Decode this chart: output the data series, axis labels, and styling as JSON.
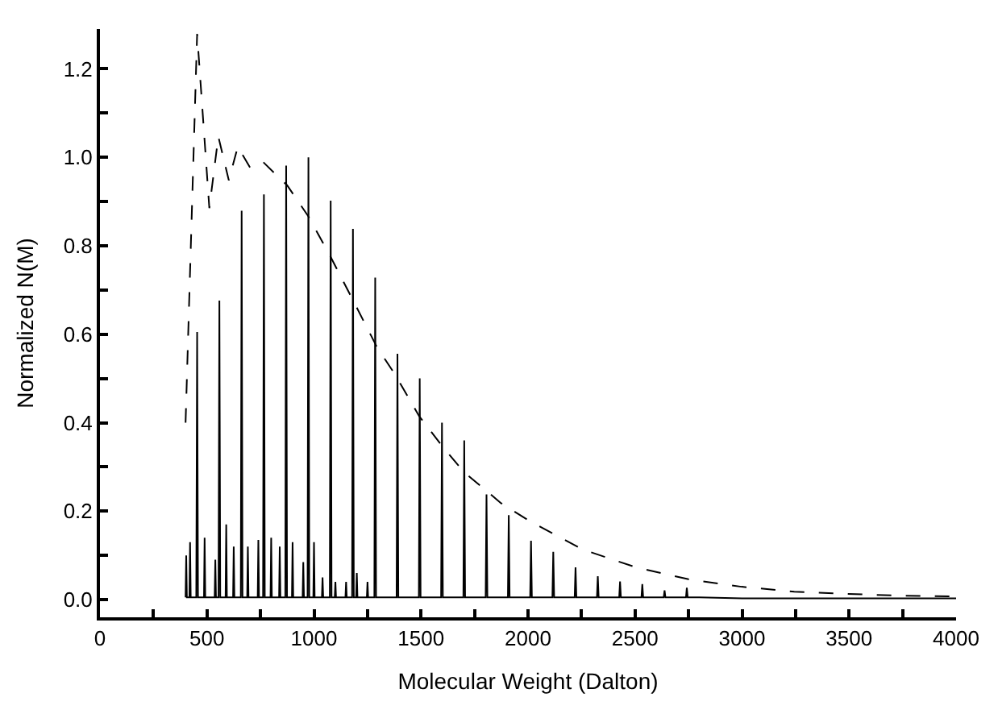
{
  "chart_data": {
    "type": "line",
    "xlabel": "Molecular Weight (Dalton)",
    "ylabel": "Normalized N(M)",
    "xlim": [
      0,
      4000
    ],
    "ylim": [
      -0.04,
      1.29
    ],
    "xticks": [
      0,
      {
        "value": 250,
        "label": null
      },
      500,
      {
        "value": 750,
        "label": null
      },
      1000,
      {
        "value": 1250,
        "label": null
      },
      1500,
      {
        "value": 1750,
        "label": null
      },
      2000,
      {
        "value": 2250,
        "label": null
      },
      2500,
      {
        "value": 2750,
        "label": null
      },
      3000,
      {
        "value": 3250,
        "label": null
      },
      3500,
      {
        "value": 3750,
        "label": null
      },
      4000
    ],
    "yticks": [
      {
        "value": 0,
        "label": "0.0"
      },
      {
        "value": 0.1,
        "label": null
      },
      0.2,
      {
        "value": 0.3,
        "label": null
      },
      0.4,
      {
        "value": 0.5,
        "label": null
      },
      0.6,
      {
        "value": 0.7,
        "label": null
      },
      0.8,
      {
        "value": 0.9,
        "label": null
      },
      {
        "value": 1,
        "label": "1.0"
      },
      {
        "value": 1.1,
        "label": null
      },
      1.2
    ],
    "marker": "none",
    "series": [
      {
        "color": "#000000",
        "line_style": "solid",
        "x": [
          400,
          403,
          406,
          418,
          421,
          424,
          450,
          454,
          458,
          486,
          489,
          492,
          536,
          539,
          542,
          554,
          558,
          562,
          587,
          590,
          593,
          622,
          625,
          628,
          658,
          662,
          666,
          688,
          691,
          694,
          737,
          740,
          743,
          762,
          766,
          770,
          797,
          800,
          803,
          837,
          840,
          843,
          866,
          870,
          874,
          897,
          900,
          903,
          947,
          950,
          953,
          970,
          974,
          978,
          997,
          1000,
          1003,
          1037,
          1040,
          1043,
          1074,
          1078,
          1082,
          1097,
          1100,
          1103,
          1147,
          1150,
          1153,
          1178,
          1182,
          1186,
          1197,
          1200,
          1203,
          1247,
          1250,
          1253,
          1282,
          1286,
          1290,
          1386,
          1390,
          1394,
          1490,
          1494,
          1498,
          1594,
          1598,
          1602,
          1698,
          1702,
          1706,
          1802,
          1806,
          1810,
          1906,
          1910,
          1914,
          2010,
          2014,
          2018,
          2114,
          2118,
          2122,
          2218,
          2222,
          2226,
          2322,
          2326,
          2330,
          2426,
          2430,
          2434,
          2530,
          2534,
          2538,
          2634,
          2638,
          2642,
          2738,
          2742,
          2746,
          2800,
          3000,
          3500,
          4000
        ],
        "values": [
          0.005,
          0.1,
          0.005,
          0.005,
          0.13,
          0.005,
          0.005,
          0.605,
          0.005,
          0.005,
          0.14,
          0.005,
          0.005,
          0.09,
          0.005,
          0.005,
          0.676,
          0.005,
          0.005,
          0.17,
          0.005,
          0.005,
          0.12,
          0.005,
          0.005,
          0.879,
          0.005,
          0.005,
          0.12,
          0.005,
          0.005,
          0.135,
          0.005,
          0.005,
          0.916,
          0.005,
          0.005,
          0.14,
          0.005,
          0.005,
          0.12,
          0.005,
          0.005,
          0.981,
          0.005,
          0.005,
          0.13,
          0.005,
          0.005,
          0.085,
          0.005,
          0.005,
          1.0,
          0.005,
          0.005,
          0.13,
          0.005,
          0.005,
          0.05,
          0.005,
          0.005,
          0.902,
          0.005,
          0.005,
          0.04,
          0.005,
          0.005,
          0.04,
          0.005,
          0.005,
          0.838,
          0.005,
          0.005,
          0.06,
          0.005,
          0.005,
          0.04,
          0.005,
          0.005,
          0.728,
          0.005,
          0.005,
          0.556,
          0.005,
          0.005,
          0.5,
          0.005,
          0.005,
          0.4,
          0.005,
          0.005,
          0.36,
          0.005,
          0.005,
          0.238,
          0.005,
          0.005,
          0.191,
          0.005,
          0.005,
          0.133,
          0.005,
          0.005,
          0.108,
          0.005,
          0.005,
          0.073,
          0.005,
          0.005,
          0.053,
          0.005,
          0.005,
          0.041,
          0.005,
          0.005,
          0.035,
          0.005,
          0.005,
          0.021,
          0.005,
          0.005,
          0.027,
          0.005,
          0.005,
          0.003,
          0.003,
          0.003
        ]
      },
      {
        "color": "#000000",
        "line_style": "dashed",
        "x": [
          400,
          454,
          511,
          553,
          602,
          644,
          701,
          763,
          824,
          874,
          973,
          1072,
          1183,
          1294,
          1380,
          1491,
          1602,
          1701,
          1788,
          1874,
          2010,
          2257,
          2504,
          2750,
          2998,
          3244,
          3491,
          3738,
          4000
        ],
        "values": [
          0.4,
          1.279,
          0.885,
          1.047,
          0.948,
          1.024,
          0.977,
          0.989,
          0.96,
          0.937,
          0.867,
          0.78,
          0.676,
          0.571,
          0.508,
          0.415,
          0.345,
          0.288,
          0.253,
          0.218,
          0.177,
          0.113,
          0.073,
          0.046,
          0.029,
          0.018,
          0.013,
          0.009,
          0.007
        ]
      }
    ]
  }
}
